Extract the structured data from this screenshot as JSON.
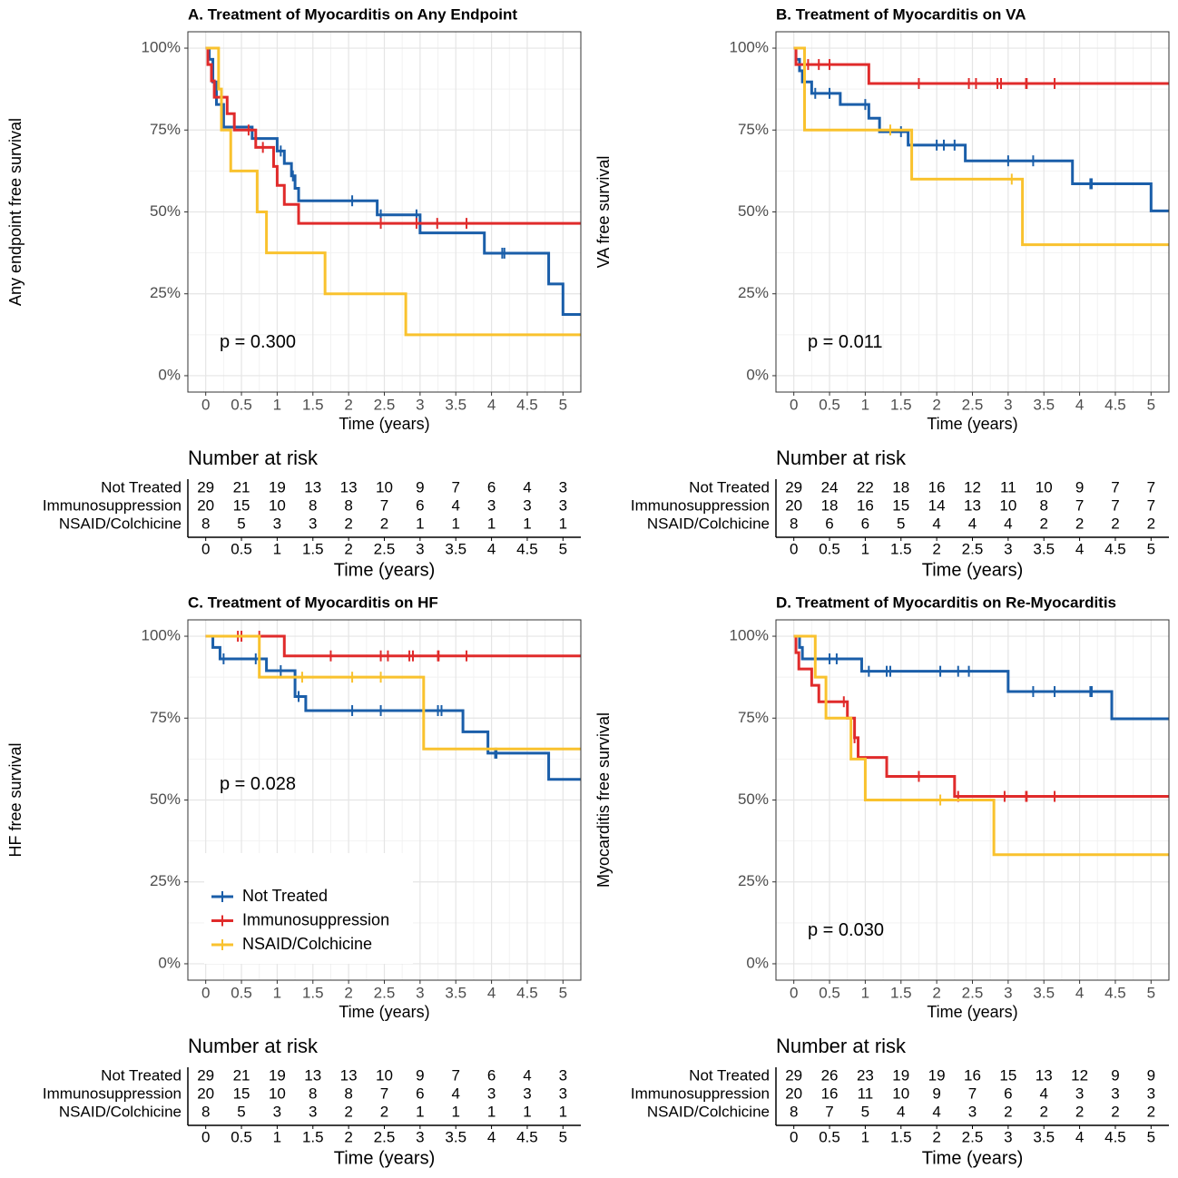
{
  "chart_data": [
    {
      "type": "survival",
      "title": "A. Treatment of Myocarditis on Any Endpoint",
      "xlabel": "Time (years)",
      "ylabel": "Any endpoint free survival",
      "annotation": "p = 0.300",
      "risk_title": "Number at risk",
      "xlim": [
        -0.25,
        5.25
      ],
      "xticks": [
        0,
        0.5,
        1,
        1.5,
        2,
        2.5,
        3,
        3.5,
        4,
        4.5,
        5
      ],
      "ylim": [
        -5,
        105
      ],
      "yticks": [
        {
          "value": 0,
          "label": "0%"
        },
        {
          "value": 25,
          "label": "25%"
        },
        {
          "value": 50,
          "label": "50%"
        },
        {
          "value": 75,
          "label": "75%"
        },
        {
          "value": 100,
          "label": "100%"
        }
      ],
      "grid": true,
      "series": [
        {
          "name": "Not Treated",
          "color": "#1a5ea9",
          "x": [
            0,
            0.05,
            0.1,
            0.15,
            0.25,
            0.65,
            1.0,
            1.1,
            1.2,
            1.25,
            1.3,
            2.4,
            3.0,
            3.9,
            4.8,
            5.0
          ],
          "values": [
            100,
            96.6,
            89.7,
            82.8,
            75.9,
            72.4,
            68.6,
            64.8,
            61,
            57.2,
            53.4,
            49.1,
            43.6,
            37.4,
            28,
            18.7
          ],
          "censor_x": [
            0.7,
            1.05,
            1.22,
            2.05,
            2.45,
            2.95,
            4.15,
            4.18
          ],
          "at_risk": [
            29,
            21,
            19,
            13,
            13,
            10,
            9,
            7,
            6,
            4,
            3
          ]
        },
        {
          "name": "Immunosuppression",
          "color": "#e02b2b",
          "x": [
            0,
            0.03,
            0.08,
            0.12,
            0.3,
            0.4,
            0.7,
            0.95,
            1.0,
            1.1,
            1.3
          ],
          "values": [
            100,
            95,
            90,
            85,
            80,
            75,
            69.7,
            63.9,
            58.1,
            52.3,
            46.5
          ],
          "censor_x": [
            0.6,
            0.8,
            2.45,
            2.95,
            3.24,
            3.65
          ],
          "at_risk": [
            20,
            15,
            10,
            8,
            8,
            7,
            6,
            4,
            3,
            3,
            3
          ]
        },
        {
          "name": "NSAID/Colchicine",
          "color": "#f9c22e",
          "x": [
            0,
            0.18,
            0.22,
            0.35,
            0.72,
            0.85,
            1.67,
            2.8
          ],
          "values": [
            100,
            87.5,
            75,
            62.5,
            50,
            37.5,
            25,
            12.5
          ],
          "censor_x": [],
          "at_risk": [
            8,
            5,
            3,
            3,
            2,
            2,
            1,
            1,
            1,
            1,
            1
          ]
        }
      ]
    },
    {
      "type": "survival",
      "title": "B. Treatment of Myocarditis on VA",
      "xlabel": "Time (years)",
      "ylabel": "VA free survival",
      "annotation": "p = 0.011",
      "risk_title": "Number at risk",
      "xlim": [
        -0.25,
        5.25
      ],
      "xticks": [
        0,
        0.5,
        1,
        1.5,
        2,
        2.5,
        3,
        3.5,
        4,
        4.5,
        5
      ],
      "ylim": [
        -5,
        105
      ],
      "yticks": [
        {
          "value": 0,
          "label": "0%"
        },
        {
          "value": 25,
          "label": "25%"
        },
        {
          "value": 50,
          "label": "50%"
        },
        {
          "value": 75,
          "label": "75%"
        },
        {
          "value": 100,
          "label": "100%"
        }
      ],
      "grid": true,
      "series": [
        {
          "name": "Not Treated",
          "color": "#1a5ea9",
          "x": [
            0,
            0.03,
            0.08,
            0.12,
            0.25,
            0.65,
            1.05,
            1.2,
            1.6,
            2.4,
            3.9,
            5.0
          ],
          "values": [
            100,
            96.6,
            93.1,
            89.7,
            86.2,
            82.8,
            78.6,
            74.5,
            70.4,
            65.6,
            58.6,
            50.3
          ],
          "censor_x": [
            0.3,
            0.5,
            1.0,
            1.5,
            2.0,
            2.1,
            2.25,
            3.0,
            3.35,
            4.15,
            4.17
          ],
          "at_risk": [
            29,
            24,
            22,
            18,
            16,
            12,
            11,
            10,
            9,
            7,
            7
          ]
        },
        {
          "name": "Immunosuppression",
          "color": "#e02b2b",
          "x": [
            0,
            0.03,
            1.05
          ],
          "values": [
            100,
            95,
            89.2
          ],
          "censor_x": [
            0.2,
            0.35,
            0.5,
            1.75,
            2.45,
            2.55,
            2.85,
            2.9,
            3.25,
            3.26,
            3.65
          ],
          "at_risk": [
            20,
            18,
            16,
            15,
            14,
            13,
            10,
            8,
            7,
            7,
            7
          ]
        },
        {
          "name": "NSAID/Colchicine",
          "color": "#f9c22e",
          "x": [
            0,
            0.15,
            1.65,
            3.2
          ],
          "values": [
            100,
            75,
            60,
            40
          ],
          "censor_x": [
            1.35,
            3.05
          ],
          "at_risk": [
            8,
            6,
            6,
            5,
            4,
            4,
            4,
            2,
            2,
            2,
            2
          ]
        }
      ]
    },
    {
      "type": "survival",
      "title": "C. Treatment of Myocarditis on HF",
      "xlabel": "Time (years)",
      "ylabel": "HF free survival",
      "annotation": "p = 0.028",
      "risk_title": "Number at risk",
      "legend": "bottom-left",
      "xlim": [
        -0.25,
        5.25
      ],
      "xticks": [
        0,
        0.5,
        1,
        1.5,
        2,
        2.5,
        3,
        3.5,
        4,
        4.5,
        5
      ],
      "ylim": [
        -5,
        105
      ],
      "yticks": [
        {
          "value": 0,
          "label": "0%"
        },
        {
          "value": 25,
          "label": "25%"
        },
        {
          "value": 50,
          "label": "50%"
        },
        {
          "value": 75,
          "label": "75%"
        },
        {
          "value": 100,
          "label": "100%"
        }
      ],
      "grid": true,
      "series": [
        {
          "name": "Not Treated",
          "color": "#1a5ea9",
          "x": [
            0,
            0.1,
            0.2,
            0.85,
            1.25,
            1.4,
            3.6,
            3.95,
            4.8
          ],
          "values": [
            100,
            96.6,
            93.1,
            89.5,
            81.6,
            77.3,
            70.8,
            64.3,
            56.3
          ],
          "censor_x": [
            0.25,
            0.7,
            1.05,
            1.3,
            2.05,
            2.45,
            3.25,
            3.3,
            4.05,
            4.07
          ],
          "at_risk": [
            29,
            21,
            19,
            13,
            13,
            10,
            9,
            7,
            6,
            4,
            3
          ]
        },
        {
          "name": "Immunosuppression",
          "color": "#e02b2b",
          "x": [
            0,
            1.1
          ],
          "values": [
            100,
            94
          ],
          "censor_x": [
            0.45,
            0.5,
            0.75,
            1.75,
            2.45,
            2.55,
            2.85,
            2.9,
            3.25,
            3.26,
            3.65
          ],
          "at_risk": [
            20,
            15,
            10,
            8,
            8,
            7,
            6,
            4,
            3,
            3,
            3
          ]
        },
        {
          "name": "NSAID/Colchicine",
          "color": "#f9c22e",
          "x": [
            0,
            0.75,
            3.05
          ],
          "values": [
            100,
            87.5,
            65.6
          ],
          "censor_x": [
            1.35,
            2.05,
            2.45
          ],
          "at_risk": [
            8,
            5,
            3,
            3,
            2,
            2,
            1,
            1,
            1,
            1,
            1
          ]
        }
      ]
    },
    {
      "type": "survival",
      "title": "D. Treatment of Myocarditis on Re-Myocarditis",
      "xlabel": "Time (years)",
      "ylabel": "Myocarditis free survival",
      "annotation": "p = 0.030",
      "risk_title": "Number at risk",
      "xlim": [
        -0.25,
        5.25
      ],
      "xticks": [
        0,
        0.5,
        1,
        1.5,
        2,
        2.5,
        3,
        3.5,
        4,
        4.5,
        5
      ],
      "ylim": [
        -5,
        105
      ],
      "yticks": [
        {
          "value": 0,
          "label": "0%"
        },
        {
          "value": 25,
          "label": "25%"
        },
        {
          "value": 50,
          "label": "50%"
        },
        {
          "value": 75,
          "label": "75%"
        },
        {
          "value": 100,
          "label": "100%"
        }
      ],
      "grid": true,
      "series": [
        {
          "name": "Not Treated",
          "color": "#1a5ea9",
          "x": [
            0,
            0.08,
            0.12,
            0.95,
            3.0,
            4.45
          ],
          "values": [
            100,
            96.6,
            93.1,
            89.3,
            83.1,
            74.8
          ],
          "censor_x": [
            0.3,
            0.5,
            0.6,
            1.05,
            1.3,
            1.35,
            2.05,
            2.3,
            2.45,
            3.35,
            3.65,
            4.15,
            4.17
          ],
          "at_risk": [
            29,
            26,
            23,
            19,
            19,
            16,
            15,
            13,
            12,
            9,
            9
          ]
        },
        {
          "name": "Immunosuppression",
          "color": "#e02b2b",
          "x": [
            0,
            0.03,
            0.07,
            0.25,
            0.35,
            0.75,
            0.85,
            0.9,
            1.3,
            2.25
          ],
          "values": [
            100,
            95,
            90,
            85,
            80,
            75,
            69,
            63,
            57.2,
            51.1
          ],
          "censor_x": [
            0.7,
            0.85,
            1.75,
            2.3,
            2.95,
            3.25,
            3.26,
            3.65
          ],
          "at_risk": [
            20,
            16,
            11,
            10,
            9,
            7,
            6,
            4,
            3,
            3,
            3
          ]
        },
        {
          "name": "NSAID/Colchicine",
          "color": "#f9c22e",
          "x": [
            0,
            0.3,
            0.45,
            0.8,
            1.0,
            2.8
          ],
          "values": [
            100,
            87.5,
            75,
            62.5,
            50,
            33.3
          ],
          "censor_x": [
            2.05
          ],
          "at_risk": [
            8,
            7,
            5,
            4,
            4,
            3,
            2,
            2,
            2,
            2,
            2
          ]
        }
      ]
    }
  ]
}
